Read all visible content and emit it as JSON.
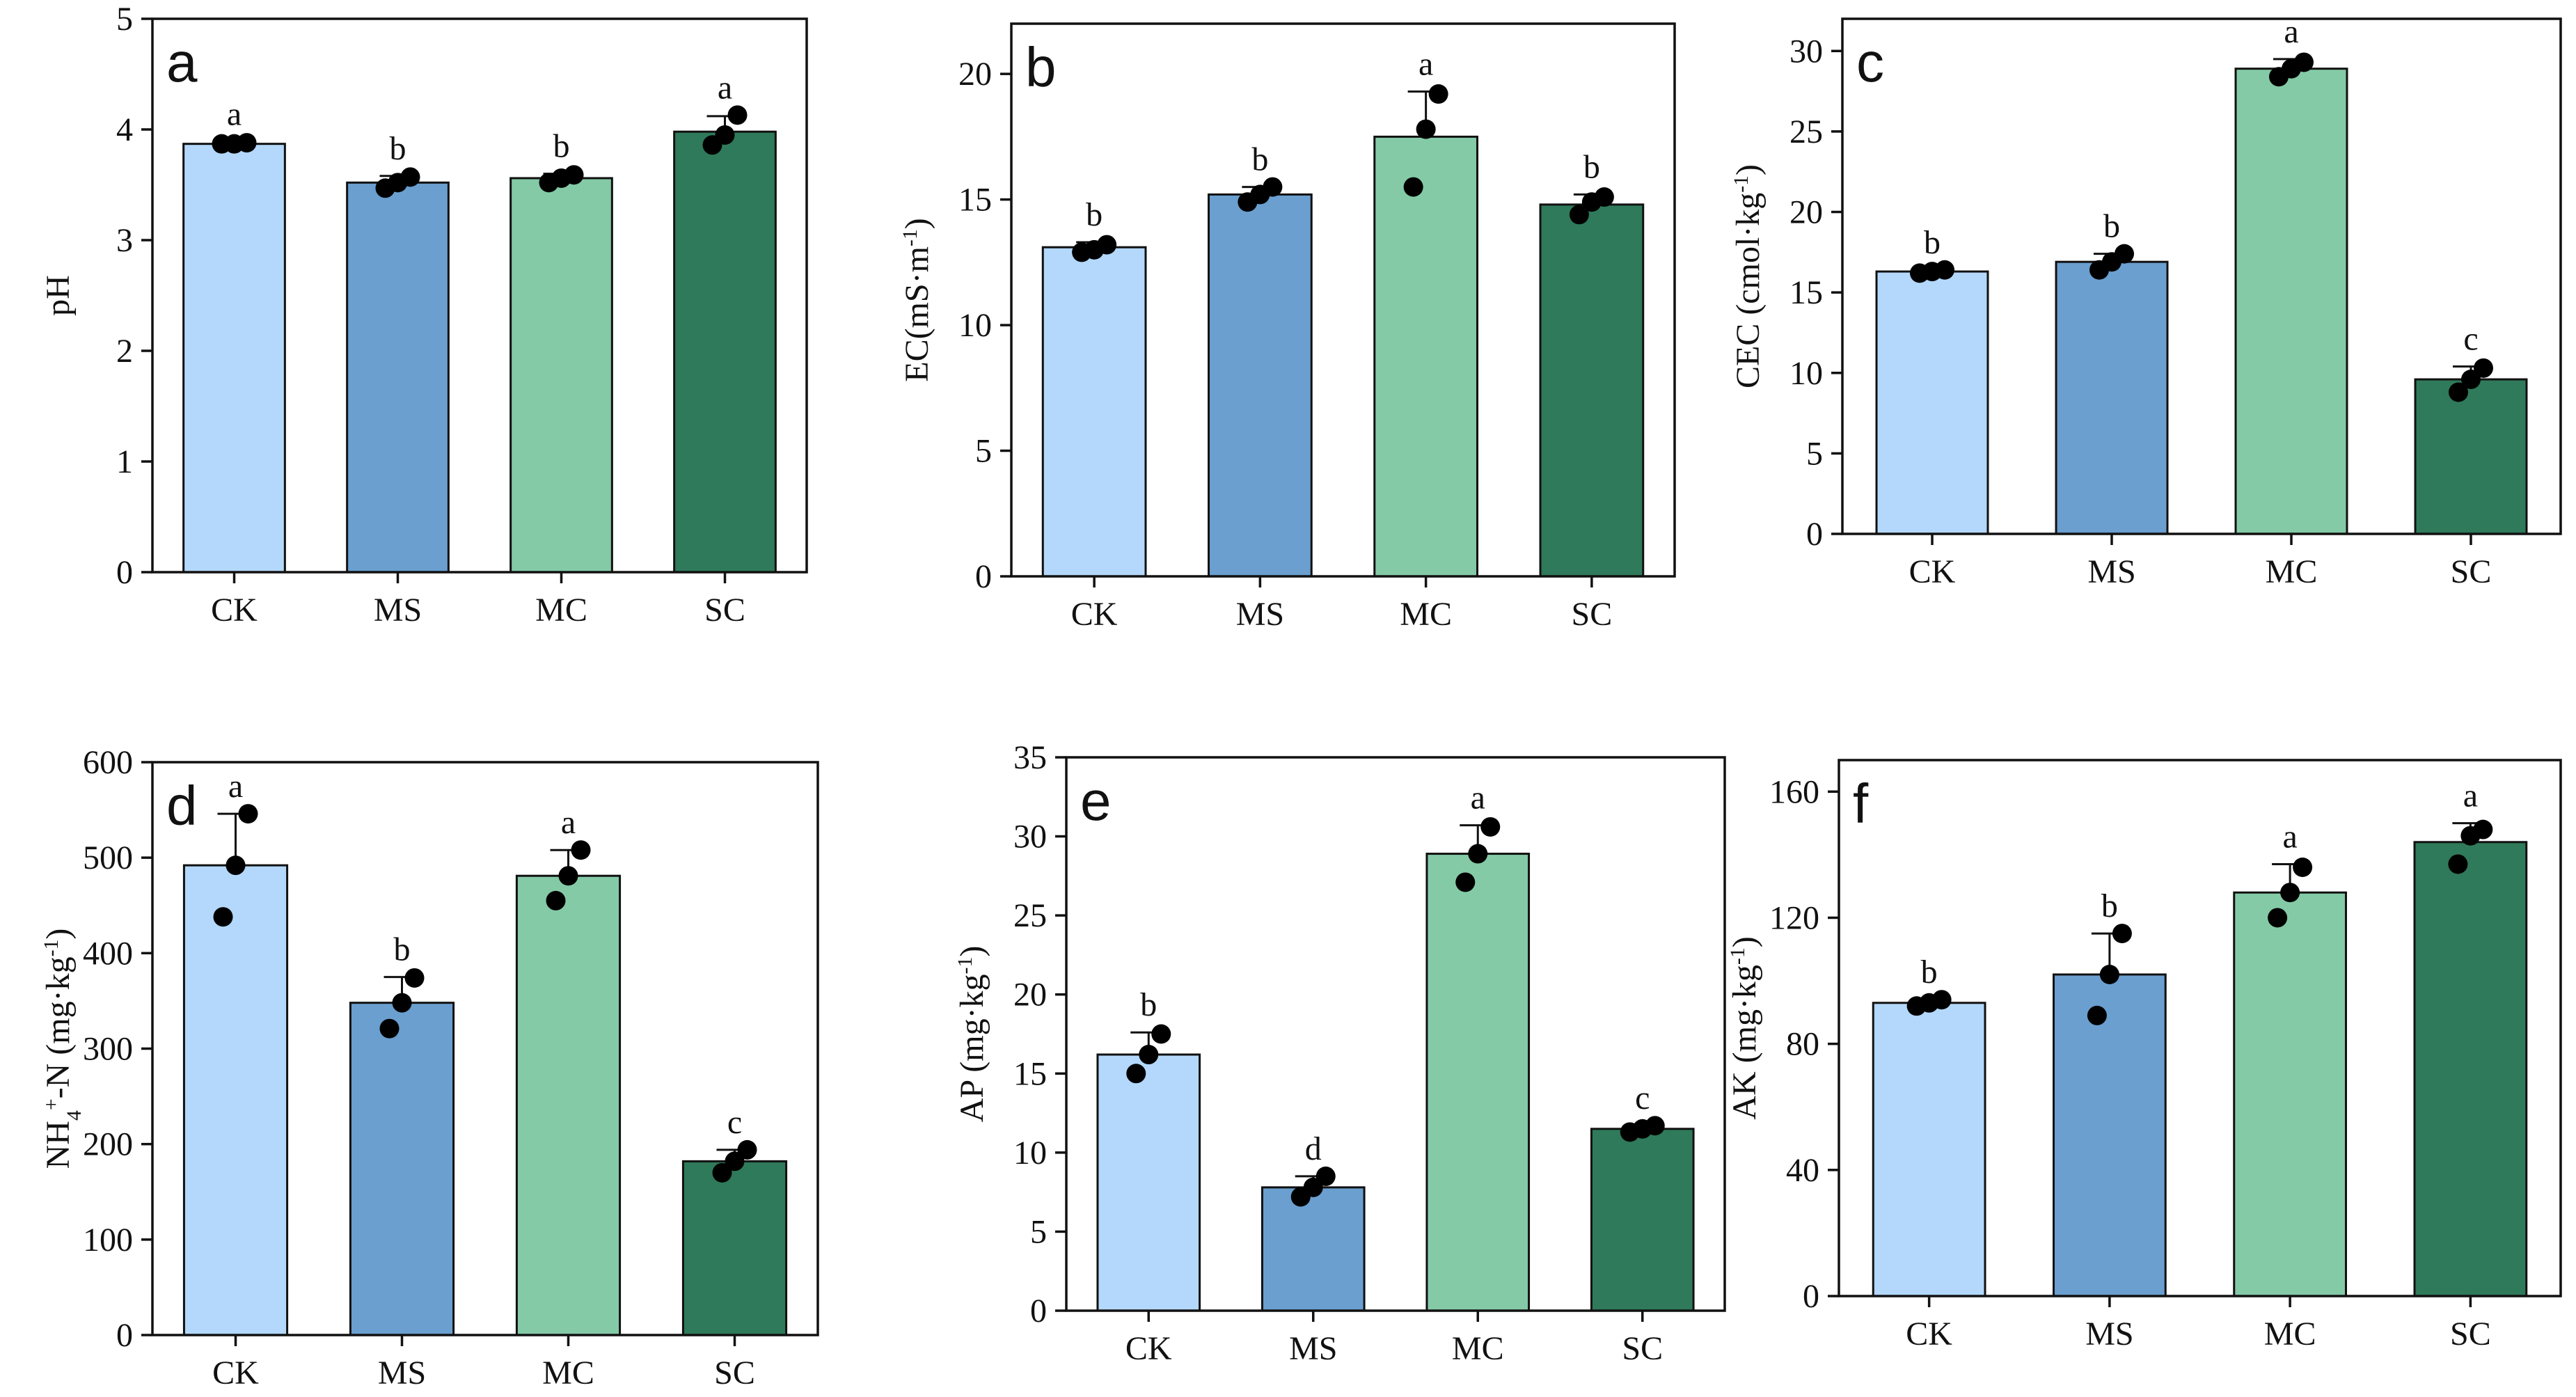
{
  "colors": {
    "CK": "#b3d8fb",
    "MS": "#6a9fcf",
    "MC": "#84caa7",
    "SC": "#2f7a5a",
    "axis": "#111111",
    "dot": "#000000"
  },
  "chart_data": [
    {
      "type": "bar",
      "panel": "a",
      "title": "",
      "xlabel": "",
      "ylabel_parts": [
        {
          "t": "pH"
        }
      ],
      "categories": [
        "CK",
        "MS",
        "MC",
        "SC"
      ],
      "values": [
        3.87,
        3.52,
        3.56,
        3.98
      ],
      "errors": [
        0.02,
        0.06,
        0.04,
        0.14
      ],
      "points": [
        [
          3.87,
          3.87,
          3.88
        ],
        [
          3.47,
          3.52,
          3.57
        ],
        [
          3.52,
          3.56,
          3.59
        ],
        [
          3.86,
          3.95,
          4.13
        ]
      ],
      "letters": [
        "a",
        "b",
        "b",
        "a"
      ],
      "ylim": [
        0,
        5
      ],
      "yticks": [
        0,
        1,
        2,
        3,
        4,
        5
      ]
    },
    {
      "type": "bar",
      "panel": "b",
      "title": "",
      "xlabel": "",
      "ylabel_parts": [
        {
          "t": "EC(mS·m"
        },
        {
          "t": "-1",
          "sup": true
        },
        {
          "t": ")"
        }
      ],
      "categories": [
        "CK",
        "MS",
        "MC",
        "SC"
      ],
      "values": [
        13.1,
        15.2,
        17.5,
        14.8
      ],
      "errors": [
        0.2,
        0.3,
        1.8,
        0.4
      ],
      "points": [
        [
          12.9,
          13.0,
          13.2
        ],
        [
          14.9,
          15.2,
          15.5
        ],
        [
          15.5,
          17.8,
          19.2
        ],
        [
          14.4,
          14.9,
          15.1
        ]
      ],
      "letters": [
        "b",
        "b",
        "a",
        "b"
      ],
      "ylim": [
        0,
        22
      ],
      "yticks": [
        0,
        5,
        10,
        15,
        20
      ]
    },
    {
      "type": "bar",
      "panel": "c",
      "title": "",
      "xlabel": "",
      "ylabel_parts": [
        {
          "t": "CEC (cmol·kg"
        },
        {
          "t": "-1",
          "sup": true
        },
        {
          "t": ")"
        }
      ],
      "categories": [
        "CK",
        "MS",
        "MC",
        "SC"
      ],
      "values": [
        16.3,
        16.9,
        28.9,
        9.6
      ],
      "errors": [
        0.1,
        0.5,
        0.6,
        0.8
      ],
      "points": [
        [
          16.2,
          16.3,
          16.4
        ],
        [
          16.4,
          16.9,
          17.4
        ],
        [
          28.4,
          28.9,
          29.3
        ],
        [
          8.8,
          9.6,
          10.3
        ]
      ],
      "letters": [
        "b",
        "b",
        "a",
        "c"
      ],
      "ylim": [
        0,
        32
      ],
      "yticks": [
        0,
        5,
        10,
        15,
        20,
        25,
        30
      ]
    },
    {
      "type": "bar",
      "panel": "d",
      "title": "",
      "xlabel": "",
      "ylabel_parts": [
        {
          "t": "NH"
        },
        {
          "t": "4",
          "sub": true
        },
        {
          "t": "+",
          "sup": true
        },
        {
          "t": "-N (mg·kg"
        },
        {
          "t": "-1",
          "sup": true
        },
        {
          "t": ")"
        }
      ],
      "categories": [
        "CK",
        "MS",
        "MC",
        "SC"
      ],
      "values": [
        492,
        348,
        481,
        182
      ],
      "errors": [
        54,
        27,
        27,
        12
      ],
      "points": [
        [
          438,
          492,
          546
        ],
        [
          321,
          348,
          374
        ],
        [
          455,
          481,
          508
        ],
        [
          170,
          182,
          194
        ]
      ],
      "letters": [
        "a",
        "b",
        "a",
        "c"
      ],
      "ylim": [
        0,
        600
      ],
      "yticks": [
        0,
        100,
        200,
        300,
        400,
        500,
        600
      ]
    },
    {
      "type": "bar",
      "panel": "e",
      "title": "",
      "xlabel": "",
      "ylabel_parts": [
        {
          "t": "AP (mg·kg"
        },
        {
          "t": "-1",
          "sup": true
        },
        {
          "t": ")"
        }
      ],
      "categories": [
        "CK",
        "MS",
        "MC",
        "SC"
      ],
      "values": [
        16.2,
        7.8,
        28.9,
        11.5
      ],
      "errors": [
        1.4,
        0.7,
        1.8,
        0.2
      ],
      "points": [
        [
          15.0,
          16.2,
          17.5
        ],
        [
          7.2,
          7.8,
          8.5
        ],
        [
          27.1,
          28.9,
          30.6
        ],
        [
          11.3,
          11.5,
          11.7
        ]
      ],
      "letters": [
        "b",
        "d",
        "a",
        "c"
      ],
      "ylim": [
        0,
        35
      ],
      "yticks": [
        0,
        5,
        10,
        15,
        20,
        25,
        30,
        35
      ]
    },
    {
      "type": "bar",
      "panel": "f",
      "title": "",
      "xlabel": "",
      "ylabel_parts": [
        {
          "t": "AK (mg·kg"
        },
        {
          "t": "-1",
          "sup": true
        },
        {
          "t": ")"
        }
      ],
      "categories": [
        "CK",
        "MS",
        "MC",
        "SC"
      ],
      "values": [
        93,
        102,
        128,
        144
      ],
      "errors": [
        1,
        13,
        9,
        6
      ],
      "points": [
        [
          92,
          93,
          94
        ],
        [
          89,
          102,
          115
        ],
        [
          120,
          128,
          136
        ],
        [
          137,
          146,
          148
        ]
      ],
      "letters": [
        "b",
        "b",
        "a",
        "a"
      ],
      "ylim": [
        0,
        170
      ],
      "yticks": [
        0,
        40,
        80,
        120,
        160
      ]
    }
  ]
}
